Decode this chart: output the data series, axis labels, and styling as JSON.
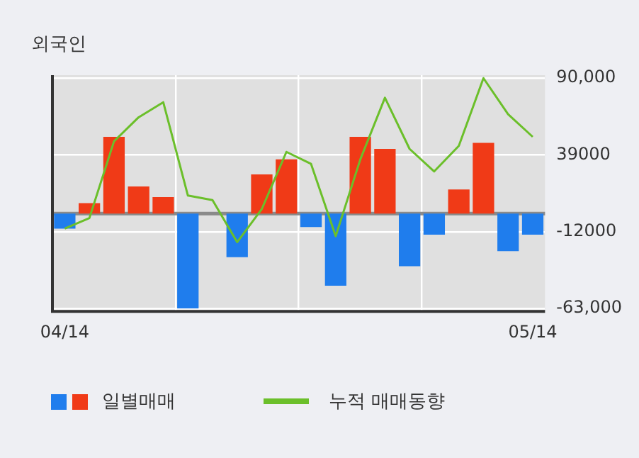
{
  "chart_data": {
    "type": "bar",
    "title": "외국인",
    "categories": [
      "04/14",
      null,
      null,
      null,
      null,
      null,
      null,
      null,
      null,
      null,
      null,
      null,
      null,
      null,
      null,
      null,
      null,
      null,
      null,
      "05/14"
    ],
    "series": [
      {
        "name": "일별매매",
        "colors": [
          "#1f7ded",
          "#f03a17",
          "#f03a17",
          "#f03a17",
          "#f03a17",
          "#1f7ded",
          "#f03a17",
          "#1f7ded",
          "#f03a17",
          "#f03a17",
          "#1f7ded",
          "#1f7ded",
          "#f03a17",
          "#f03a17",
          "#1f7ded",
          "#1f7ded",
          "#f03a17",
          "#f03a17",
          "#1f7ded",
          "#1f7ded"
        ],
        "values": [
          -10000,
          7000,
          51000,
          18000,
          11000,
          -63000,
          null,
          -29000,
          26000,
          36000,
          -9000,
          -48000,
          51000,
          43000,
          -35000,
          -14000,
          16000,
          47000,
          -25000,
          -14000
        ]
      },
      {
        "type": "line",
        "name": "누적 매매동향",
        "color": "#6bbf2a",
        "values": [
          -10000,
          -3000,
          48000,
          64000,
          74000,
          12000,
          9000,
          -19000,
          3000,
          41000,
          33000,
          -15000,
          36000,
          77000,
          43000,
          28000,
          45000,
          90000,
          66000,
          51000
        ]
      }
    ],
    "ylim": [
      -65000,
      92000
    ],
    "yticks": [
      {
        "value": 90000,
        "label": "90,000"
      },
      39000,
      -12000,
      {
        "value": -63000,
        "label": "-63,000"
      }
    ],
    "grid": true,
    "legend": "bottom",
    "marker": "none"
  }
}
